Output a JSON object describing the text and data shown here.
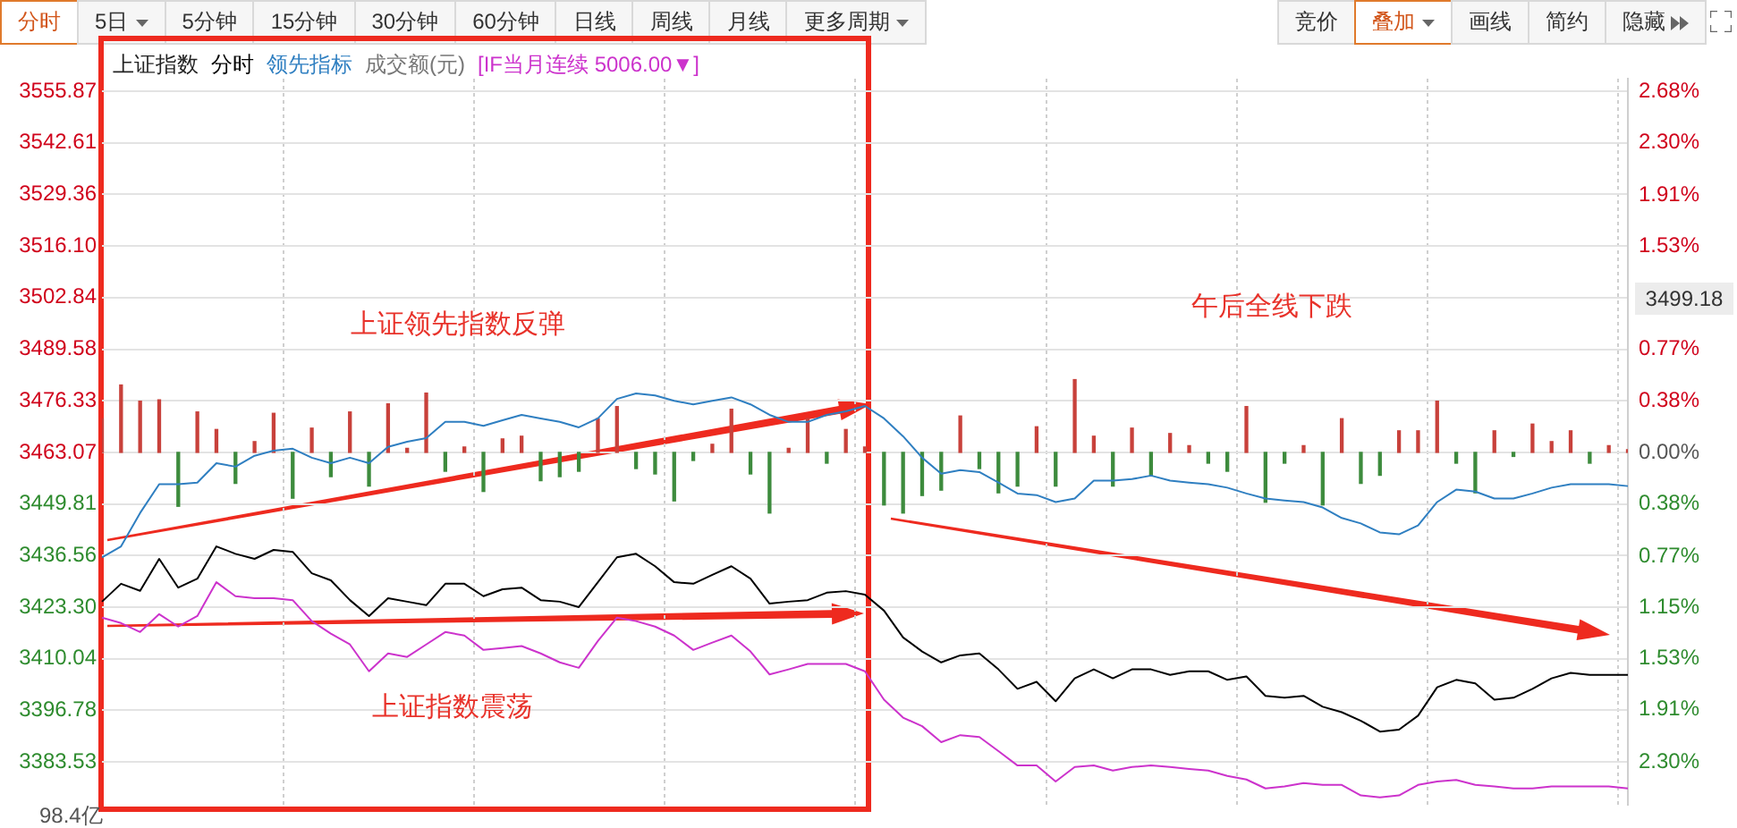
{
  "chart_data": {
    "type": "line",
    "legend_title": "上证指数",
    "legend": "top left",
    "grid": true,
    "categories": [
      null,
      null,
      null,
      null,
      null,
      null,
      null,
      null,
      null,
      null,
      null,
      null,
      null,
      null,
      null,
      null,
      null,
      null,
      null,
      null,
      null,
      null,
      null,
      null,
      null,
      null,
      null,
      null,
      null,
      null,
      null,
      null,
      null,
      null,
      null,
      null,
      null,
      null,
      null,
      null,
      null,
      null,
      null,
      null,
      null,
      null,
      null,
      null,
      null,
      null,
      null,
      null,
      null,
      null,
      null,
      null,
      null,
      null,
      null,
      null,
      null,
      null,
      null,
      null,
      null,
      null,
      null,
      null,
      null,
      null,
      null,
      null,
      null,
      null,
      null,
      null,
      null,
      null,
      null,
      null,
      null
    ],
    "ylim": [
      3372.6,
      3559.1
    ],
    "yticks": [
      3555.87,
      3542.61,
      3529.36,
      {
        "value": 3516.1,
        "label": "3516.10"
      },
      3502.84,
      3489.58,
      3476.33,
      3463.07,
      3449.81,
      3436.56,
      {
        "value": 3423.3,
        "label": "3423.30"
      },
      3410.04,
      3396.78,
      3383.53
    ],
    "y2lim": [
      -2.612,
      2.773
    ],
    "y2ticks": [
      {
        "value": 2.68,
        "label": "2.68%"
      },
      {
        "value": 2.3,
        "label": "2.30%"
      },
      {
        "value": 1.91,
        "label": "1.91%"
      },
      {
        "value": 1.53,
        "label": "1.53%"
      },
      {
        "value": 0.77,
        "label": "0.77%"
      },
      {
        "value": 0.38,
        "label": "0.38%"
      },
      {
        "value": 0,
        "label": "0.00%"
      },
      {
        "value": -0.38,
        "label": "0.38%"
      },
      {
        "value": -0.77,
        "label": "0.77%"
      },
      {
        "value": -1.15,
        "label": "1.15%"
      },
      {
        "value": -1.53,
        "label": "1.53%"
      },
      {
        "value": -1.91,
        "label": "1.91%"
      },
      {
        "value": -2.3,
        "label": "2.30%"
      }
    ],
    "series": [
      {
        "type": "bar",
        "axis": "y2",
        "color": "#c8413b",
        "values": [
          0.25,
          0.5,
          0.38,
          0.39,
          null,
          0.3,
          0.17,
          null,
          0.08,
          0.29,
          null,
          0.18,
          null,
          0.3,
          null,
          0.36,
          0.03,
          0.44,
          null,
          0.04,
          null,
          0.1,
          0.12,
          null,
          null,
          null,
          0.25,
          0.34,
          null,
          null,
          null,
          null,
          0.06,
          0.32,
          null,
          null,
          0.03,
          0.25,
          null,
          0.17,
          0.04,
          null,
          null,
          null,
          null,
          0.27,
          null,
          null,
          null,
          0.19,
          null,
          0.54,
          0.12,
          null,
          0.18,
          null,
          0.14,
          0.05,
          null,
          null,
          0.34,
          null,
          null,
          0.05,
          null,
          0.25,
          null,
          null,
          0.16,
          0.16,
          0.38,
          null,
          null,
          0.16,
          null,
          0.21,
          0.08,
          0.16,
          null,
          0.05,
          0.02
        ]
      },
      {
        "type": "bar",
        "axis": "y2",
        "color": "#3d8b3d",
        "values": [
          null,
          null,
          null,
          null,
          -0.4,
          null,
          null,
          -0.23,
          null,
          null,
          -0.34,
          null,
          -0.18,
          null,
          -0.25,
          null,
          null,
          null,
          -0.14,
          null,
          -0.29,
          null,
          null,
          -0.21,
          -0.18,
          -0.14,
          null,
          null,
          -0.12,
          -0.16,
          -0.36,
          -0.06,
          null,
          null,
          -0.16,
          -0.45,
          null,
          null,
          -0.08,
          null,
          null,
          -0.39,
          -0.45,
          -0.32,
          -0.28,
          null,
          -0.12,
          -0.3,
          -0.25,
          null,
          -0.25,
          null,
          null,
          -0.25,
          null,
          -0.17,
          null,
          null,
          -0.08,
          -0.14,
          null,
          -0.37,
          -0.08,
          null,
          -0.39,
          null,
          -0.23,
          -0.17,
          null,
          null,
          null,
          -0.08,
          -0.3,
          null,
          -0.03,
          null,
          null,
          null,
          -0.08,
          null,
          null
        ]
      },
      {
        "name": "分时",
        "color": "#000000",
        "values": [
          3424.7,
          3429.3,
          3427.5,
          3435.7,
          3428.3,
          3430.6,
          3438.9,
          3437.0,
          3435.7,
          3438.0,
          3437.5,
          3432.0,
          3430.2,
          3425.1,
          3421.0,
          3425.6,
          3424.7,
          3423.8,
          3429.3,
          3429.3,
          3426.1,
          3427.9,
          3428.3,
          3425.1,
          3424.7,
          3423.3,
          3429.7,
          3436.1,
          3437.0,
          3433.8,
          3429.7,
          3429.3,
          3431.6,
          3433.8,
          3430.6,
          3424.2,
          3424.7,
          3425.1,
          3427.0,
          3427.4,
          3426.5,
          3422.4,
          3415.5,
          3411.9,
          3409.1,
          3410.9,
          3411.4,
          3407.3,
          3402.3,
          3404.1,
          3399.1,
          3405.0,
          3407.3,
          3405.0,
          3407.3,
          3407.3,
          3405.9,
          3406.8,
          3406.8,
          3404.6,
          3405.5,
          3400.5,
          3400.0,
          3400.5,
          3397.7,
          3396.3,
          3394.1,
          3391.3,
          3391.8,
          3395.4,
          3402.7,
          3404.6,
          3403.7,
          3399.5,
          3400.0,
          3402.3,
          3405.0,
          3406.4,
          3405.9,
          3405.9,
          3405.9
        ]
      },
      {
        "name": "领先指标",
        "color": "#2f7fc1",
        "values": [
          3436.1,
          3438.9,
          3447.5,
          3454.9,
          3454.9,
          3455.3,
          3460.3,
          3459.4,
          3462.2,
          3463.5,
          3464.0,
          3461.7,
          3460.3,
          3461.7,
          3460.3,
          3464.5,
          3465.8,
          3466.7,
          3470.9,
          3470.9,
          3469.9,
          3471.3,
          3472.7,
          3471.8,
          3470.9,
          3469.5,
          3471.8,
          3476.8,
          3478.2,
          3477.7,
          3476.3,
          3475.4,
          3476.3,
          3477.2,
          3475.4,
          3472.7,
          3470.9,
          3470.9,
          3472.7,
          3473.6,
          3475.0,
          3471.8,
          3467.2,
          3461.7,
          3457.6,
          3458.5,
          3458.0,
          3455.3,
          3452.5,
          3452.1,
          3450.3,
          3451.2,
          3455.8,
          3455.8,
          3456.2,
          3457.1,
          3455.8,
          3455.3,
          3454.9,
          3454.0,
          3452.5,
          3451.2,
          3450.7,
          3450.3,
          3448.9,
          3446.2,
          3444.8,
          3442.5,
          3442.0,
          3444.3,
          3450.3,
          3453.5,
          3453.0,
          3451.2,
          3451.2,
          3452.5,
          3454.0,
          3454.9,
          3454.9,
          3454.9,
          3454.4
        ]
      },
      {
        "name": "[IF当月连续 5006.00▼]",
        "color": "#cc33cc",
        "values": [
          3420.6,
          3419.2,
          3416.9,
          3421.5,
          3418.3,
          3421.0,
          3429.7,
          3426.1,
          3425.6,
          3425.6,
          3425.1,
          3419.7,
          3416.5,
          3413.7,
          3406.8,
          3411.4,
          3410.5,
          3413.7,
          3416.9,
          3416.0,
          3412.3,
          3412.8,
          3413.3,
          3411.4,
          3409.1,
          3407.7,
          3414.6,
          3420.6,
          3419.7,
          3418.3,
          3416.0,
          3412.3,
          3414.2,
          3416.0,
          3411.9,
          3406.0,
          3407.3,
          3408.7,
          3408.7,
          3408.7,
          3406.8,
          3399.5,
          3394.9,
          3392.7,
          3388.6,
          3390.4,
          3389.9,
          3386.3,
          3382.6,
          3382.6,
          3378.5,
          3382.2,
          3382.6,
          3381.3,
          3382.2,
          3382.6,
          3382.2,
          3381.7,
          3381.3,
          3379.9,
          3379.0,
          3376.7,
          3377.2,
          3378.1,
          3377.6,
          3377.6,
          3374.9,
          3374.4,
          3374.9,
          3377.6,
          3378.5,
          3378.9,
          3377.6,
          3377.2,
          3376.7,
          3376.7,
          3377.2,
          3377.2,
          3377.2,
          3377.2,
          3376.7
        ]
      }
    ],
    "annotations": [
      "分时",
      "5日",
      "5分钟",
      "15分钟",
      "30分钟",
      "60分钟",
      "日线",
      "周线",
      "月线",
      "更多周期",
      "竞价",
      "叠加",
      "画线",
      "简约",
      "隐藏",
      "成交额(元)",
      "上证领先指数反弹",
      "上证指数震荡",
      "午后全线下跌",
      "98.4亿",
      "3499.18"
    ]
  }
}
